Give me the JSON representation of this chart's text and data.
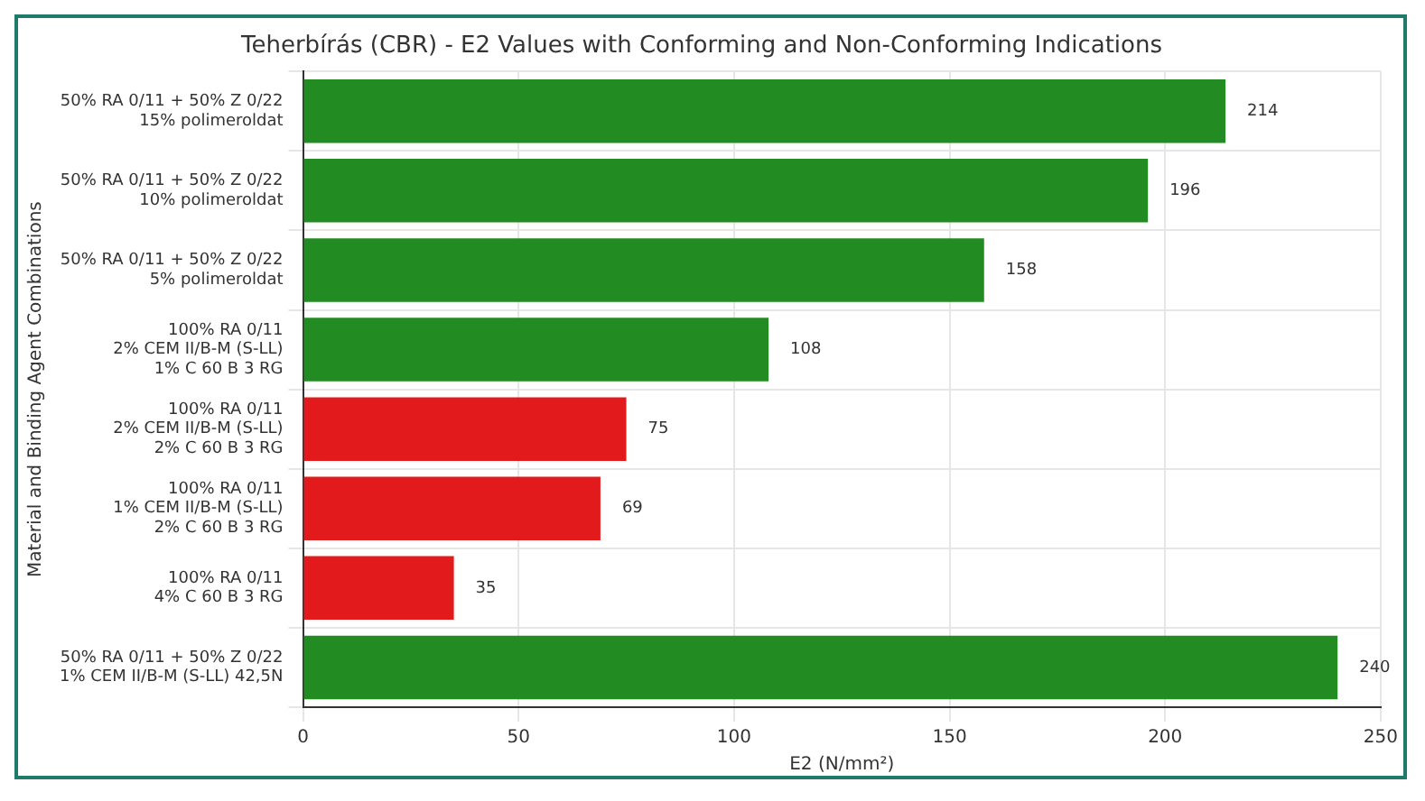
{
  "chart_data": {
    "type": "bar",
    "orientation": "horizontal",
    "title": "Teherbírás (CBR) - E2 Values with Conforming and Non-Conforming Indications",
    "xlabel": "E2 (N/mm²)",
    "ylabel": "Material and Binding Agent Combinations",
    "categories": [
      "50% RA 0/11 + 50% Z 0/22\n15% polimeroldat",
      "50% RA 0/11 + 50% Z 0/22\n10% polimeroldat",
      "50% RA 0/11 + 50% Z 0/22\n5% polimeroldat",
      "100% RA 0/11\n2% CEM II/B-M (S-LL)\n1% C 60 B 3 RG",
      "100% RA 0/11\n2% CEM II/B-M (S-LL)\n2% C 60 B 3 RG",
      "100% RA 0/11\n1% CEM II/B-M (S-LL)\n2% C 60 B 3 RG",
      "100% RA 0/11\n4% C 60 B 3 RG",
      "50% RA 0/11 + 50% Z 0/22\n1% CEM II/B-M (S-LL) 42,5N"
    ],
    "values": [
      214,
      196,
      158,
      108,
      75,
      69,
      35,
      240
    ],
    "colors": [
      "#228b22",
      "#228b22",
      "#228b22",
      "#228b22",
      "#e31a1c",
      "#e31a1c",
      "#e31a1c",
      "#228b22"
    ],
    "xlim": [
      0,
      250
    ],
    "xticks": [
      0,
      50,
      100,
      150,
      200,
      250
    ],
    "grid": true,
    "data_labels": true
  }
}
